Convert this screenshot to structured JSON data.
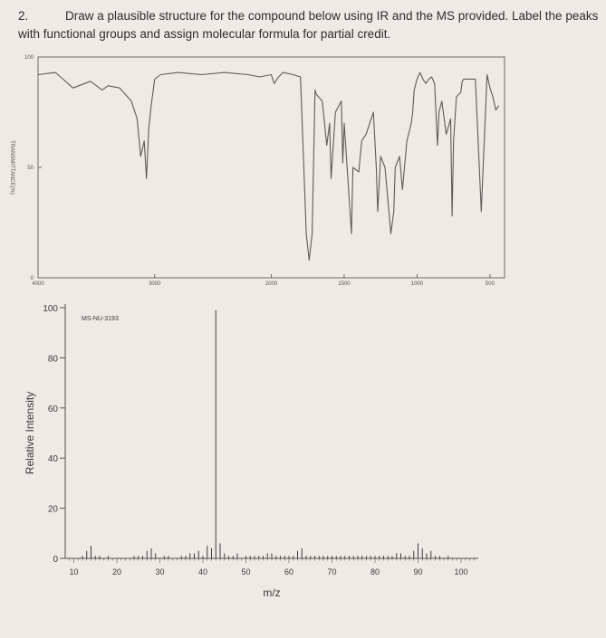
{
  "question": {
    "number": "2.",
    "text": "Draw a plausible structure for the compound below using IR and the MS provided. Label the peaks with functional groups and assign molecular formula for partial credit."
  },
  "chart_data": [
    {
      "type": "line",
      "ylabel": "TRANSMITTANCE(%)",
      "xlim": [
        4000,
        400
      ],
      "ylim": [
        0,
        100
      ],
      "grid": false,
      "x_ticks": [
        "4000",
        "3000",
        "2000",
        "1500",
        "1000",
        "500"
      ],
      "y_ticks": [
        "100",
        "50",
        "0"
      ],
      "x": [
        4000,
        3850,
        3700,
        3550,
        3450,
        3400,
        3300,
        3200,
        3150,
        3120,
        3090,
        3070,
        3050,
        3030,
        3000,
        2950,
        2800,
        2600,
        2400,
        2200,
        2100,
        2000,
        1980,
        1960,
        1950,
        1920,
        1850,
        1800,
        1760,
        1740,
        1720,
        1700,
        1690,
        1650,
        1620,
        1600,
        1590,
        1560,
        1520,
        1510,
        1500,
        1470,
        1450,
        1440,
        1400,
        1380,
        1350,
        1300,
        1280,
        1270,
        1250,
        1220,
        1180,
        1160,
        1150,
        1120,
        1100,
        1070,
        1040,
        1030,
        1020,
        1000,
        980,
        960,
        940,
        920,
        900,
        880,
        860,
        850,
        830,
        800,
        770,
        760,
        750,
        730,
        700,
        690,
        680,
        650,
        600,
        560,
        520,
        500,
        480,
        460,
        440
      ],
      "y": [
        92,
        93,
        86,
        89,
        85,
        87,
        86,
        80,
        72,
        55,
        62,
        45,
        68,
        78,
        90,
        92,
        93,
        92,
        93,
        92,
        91,
        92,
        88,
        90,
        91,
        93,
        92,
        91,
        20,
        8,
        20,
        85,
        83,
        80,
        60,
        70,
        45,
        75,
        80,
        52,
        70,
        40,
        20,
        50,
        48,
        62,
        65,
        75,
        50,
        30,
        55,
        50,
        20,
        30,
        50,
        55,
        40,
        62,
        70,
        75,
        85,
        90,
        93,
        90,
        88,
        90,
        91,
        88,
        60,
        75,
        80,
        65,
        72,
        28,
        62,
        82,
        84,
        89,
        90,
        90,
        90,
        30,
        92,
        86,
        82,
        76,
        78
      ]
    },
    {
      "type": "bar",
      "label": "MS-NU-3193",
      "xlabel": "m/z",
      "ylabel": "Relative Intensity",
      "xlim": [
        8,
        104
      ],
      "ylim": [
        0,
        100
      ],
      "grid": false,
      "x_ticks": [
        10,
        20,
        30,
        40,
        50,
        60,
        70,
        80,
        90,
        100
      ],
      "y_ticks": [
        0,
        20,
        40,
        60,
        80,
        100
      ],
      "x": [
        12,
        13,
        14,
        15,
        16,
        18,
        24,
        25,
        26,
        27,
        28,
        29,
        31,
        32,
        35,
        36,
        37,
        38,
        39,
        40,
        41,
        42,
        43,
        44,
        45,
        46,
        47,
        48,
        50,
        51,
        52,
        53,
        54,
        55,
        56,
        57,
        58,
        59,
        60,
        61,
        62,
        63,
        64,
        65,
        66,
        67,
        68,
        69,
        70,
        71,
        72,
        73,
        74,
        75,
        76,
        77,
        78,
        79,
        80,
        81,
        82,
        83,
        84,
        85,
        86,
        87,
        88,
        89,
        90,
        91,
        92,
        93,
        94,
        95,
        97
      ],
      "y": [
        1,
        3,
        5,
        1,
        1,
        1,
        1,
        1,
        1,
        3,
        4,
        2,
        1,
        1,
        1,
        1,
        2,
        2,
        3,
        1,
        5,
        4,
        99,
        6,
        2,
        1,
        1,
        2,
        1,
        1,
        1,
        1,
        1,
        2,
        2,
        1,
        1,
        1,
        1,
        1,
        3,
        4,
        1,
        1,
        1,
        1,
        1,
        1,
        1,
        1,
        1,
        1,
        1,
        1,
        1,
        1,
        1,
        1,
        1,
        1,
        1,
        1,
        1,
        2,
        2,
        1,
        1,
        3,
        6,
        4,
        2,
        3,
        1,
        1,
        1
      ]
    }
  ]
}
